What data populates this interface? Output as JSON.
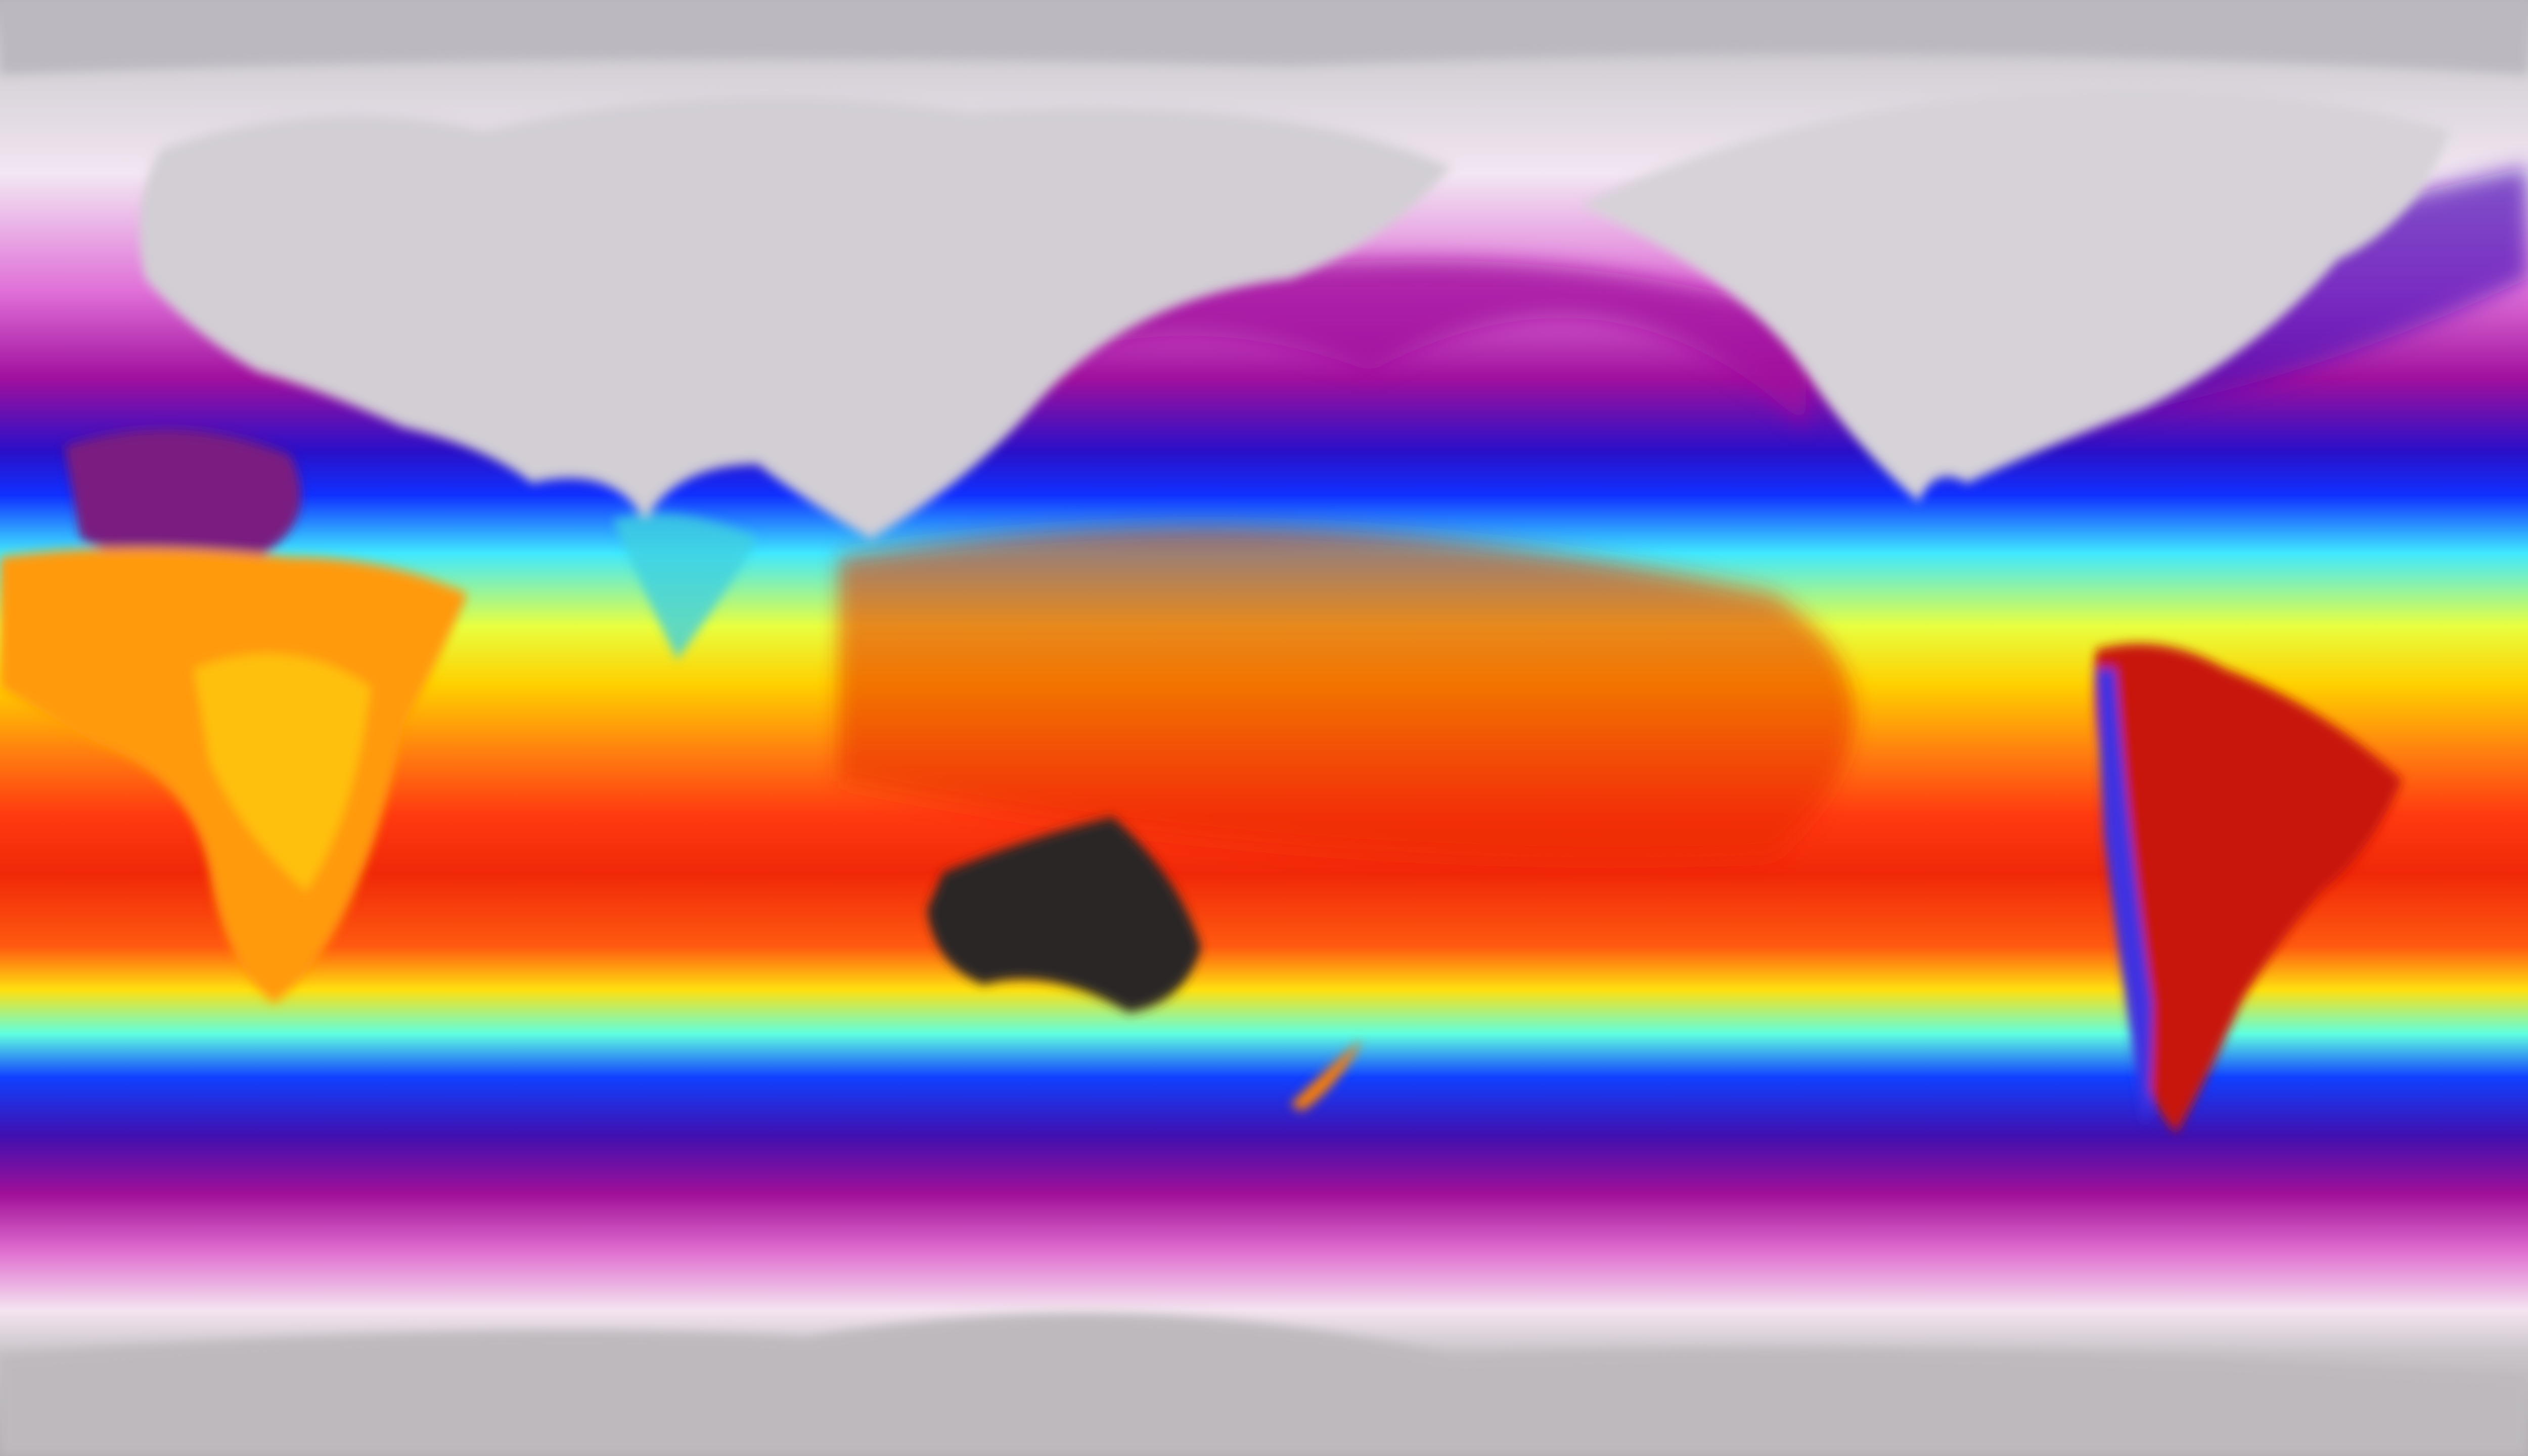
{
  "map": {
    "projection": "equirectangular",
    "variable_kind": "temperature",
    "colormap": [
      {
        "stop": 0.0,
        "color": "#b9b5bd"
      },
      {
        "stop": 0.05,
        "color": "#d6d2d8"
      },
      {
        "stop": 0.12,
        "color": "#f2e6f2"
      },
      {
        "stop": 0.2,
        "color": "#e070d8"
      },
      {
        "stop": 0.26,
        "color": "#a0109e"
      },
      {
        "stop": 0.31,
        "color": "#2a10c8"
      },
      {
        "stop": 0.34,
        "color": "#1030ff"
      },
      {
        "stop": 0.38,
        "color": "#40e8ff"
      },
      {
        "stop": 0.43,
        "color": "#e8ff40"
      },
      {
        "stop": 0.47,
        "color": "#ffd000"
      },
      {
        "stop": 0.52,
        "color": "#ff7a10"
      },
      {
        "stop": 0.56,
        "color": "#ff3a10"
      },
      {
        "stop": 0.6,
        "color": "#f02808"
      },
      {
        "stop": 0.65,
        "color": "#ff5a10"
      },
      {
        "stop": 0.68,
        "color": "#ffe010"
      },
      {
        "stop": 0.71,
        "color": "#60ffe0"
      },
      {
        "stop": 0.74,
        "color": "#1040ff"
      },
      {
        "stop": 0.78,
        "color": "#4010b0"
      },
      {
        "stop": 0.82,
        "color": "#a01098"
      },
      {
        "stop": 0.86,
        "color": "#e070d0"
      },
      {
        "stop": 0.9,
        "color": "#f4e4f0"
      },
      {
        "stop": 0.93,
        "color": "#c8c4c8"
      },
      {
        "stop": 1.0,
        "color": "#b0acb0"
      }
    ],
    "land_colors": {
      "northern_snow": "#cfcbd1",
      "australia_hot": "#2a2626",
      "south_america": "#c81808",
      "africa": "#ff9a10",
      "antarctica": "#bdb9bd"
    }
  }
}
